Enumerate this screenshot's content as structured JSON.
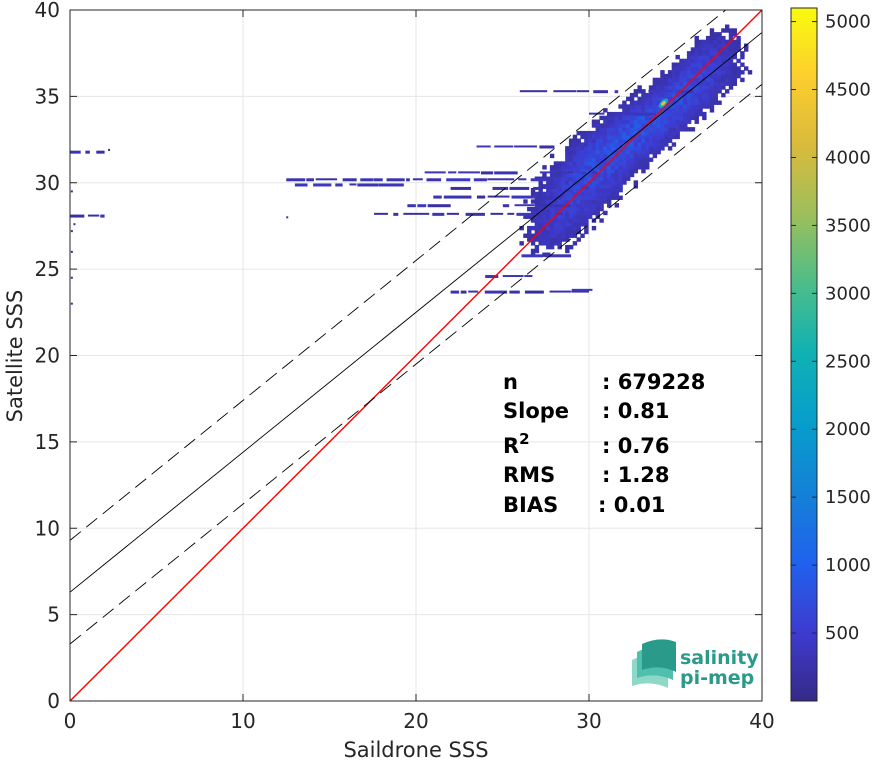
{
  "chart_data": {
    "type": "heatmap",
    "title": "",
    "xlabel": "Saildrone SSS",
    "ylabel": "Satellite SSS",
    "xlim": [
      0,
      40
    ],
    "ylim": [
      0,
      40
    ],
    "xticks": [
      0,
      10,
      20,
      30,
      40
    ],
    "yticks": [
      0,
      5,
      10,
      15,
      20,
      25,
      30,
      35,
      40
    ],
    "grid": true,
    "colorbar": {
      "min": 0,
      "max": 5100,
      "ticks": [
        500,
        1000,
        1500,
        2000,
        2500,
        3000,
        3500,
        4000,
        4500,
        5000
      ],
      "colormap": "parula"
    },
    "lines": [
      {
        "role": "identity",
        "color": "#ff0000",
        "style": "solid",
        "x": [
          0,
          40
        ],
        "y": [
          0,
          40
        ]
      },
      {
        "role": "regression",
        "color": "#000000",
        "style": "solid",
        "x": [
          0,
          40
        ],
        "y": [
          6.3,
          38.7
        ]
      },
      {
        "role": "upper-bound",
        "color": "#000000",
        "style": "dashed",
        "x": [
          0,
          40
        ],
        "y": [
          9.3,
          41.7
        ]
      },
      {
        "role": "lower-bound",
        "color": "#000000",
        "style": "dashed",
        "x": [
          0,
          40
        ],
        "y": [
          3.3,
          35.7
        ]
      }
    ],
    "stats": [
      {
        "label": "n",
        "value": ": 679228"
      },
      {
        "label": "Slope",
        "value": ": 0.81"
      },
      {
        "label": "R",
        "superscript": "2",
        "value": ": 0.76"
      },
      {
        "label": "RMS",
        "value": ": 1.28"
      },
      {
        "label": "BIAS",
        "value": ": 0.01"
      }
    ],
    "density_regions": [
      {
        "x": 33.5,
        "y": 33.5,
        "sx": 3.0,
        "sy": 2.2,
        "corr": 0.85,
        "weight": 1.0
      },
      {
        "x": 30.0,
        "y": 30.0,
        "sx": 2.0,
        "sy": 2.0,
        "corr": 0.6,
        "weight": 0.6
      },
      {
        "x": 36.5,
        "y": 37.0,
        "sx": 1.3,
        "sy": 1.3,
        "corr": 0.7,
        "weight": 0.5
      },
      {
        "x": 28.0,
        "y": 27.5,
        "sx": 1.2,
        "sy": 1.4,
        "corr": 0.5,
        "weight": 0.35
      }
    ],
    "hot_spot": {
      "x": 34.3,
      "y": 34.6,
      "value": 4200
    },
    "horizontal_streaks": [
      {
        "x0": 20.5,
        "x1": 30.5,
        "y": 30.6
      },
      {
        "x0": 22.0,
        "x1": 30.0,
        "y": 29.7
      },
      {
        "x0": 21.0,
        "x1": 29.5,
        "y": 29.2
      },
      {
        "x0": 19.5,
        "x1": 29.0,
        "y": 28.7
      },
      {
        "x0": 16.5,
        "x1": 28.5,
        "y": 28.2
      },
      {
        "x0": 12.5,
        "x1": 27.5,
        "y": 30.2
      },
      {
        "x0": 13.0,
        "x1": 20.0,
        "y": 29.9
      },
      {
        "x0": 0.0,
        "x1": 2.0,
        "y": 28.1
      },
      {
        "x0": 0.0,
        "x1": 2.0,
        "y": 31.8
      },
      {
        "x0": 22.0,
        "x1": 30.0,
        "y": 23.7
      },
      {
        "x0": 24.0,
        "x1": 27.5,
        "y": 24.6
      },
      {
        "x0": 29.0,
        "x1": 30.2,
        "y": 23.8
      },
      {
        "x0": 25.0,
        "x1": 29.0,
        "y": 25.8
      },
      {
        "x0": 23.5,
        "x1": 28.0,
        "y": 32.1
      },
      {
        "x0": 26.0,
        "x1": 36.0,
        "y": 35.3
      },
      {
        "x0": 30.0,
        "x1": 34.0,
        "y": 34.0
      }
    ]
  },
  "logo": {
    "line1": "salinity",
    "line2": "pi-mep"
  }
}
